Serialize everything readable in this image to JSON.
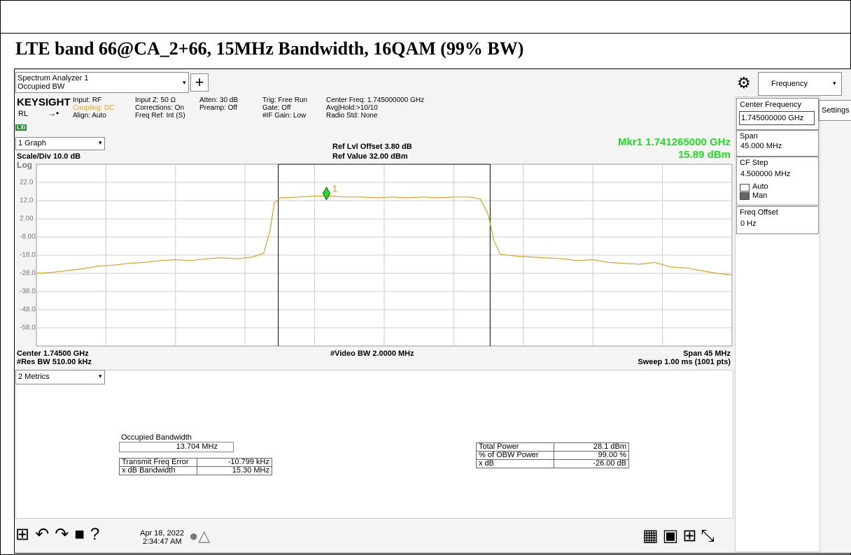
{
  "header": {
    "title": "LTE band 66@CA_2+66, 15MHz Bandwidth, 16QAM (99% BW)"
  },
  "analyzer": {
    "tab_title": "Spectrum Analyzer 1",
    "tab_subtitle": "Occupied BW",
    "brand": "KEYSIGHT",
    "rl": "RL",
    "lxi": "LXI",
    "info": [
      [
        "Input: RF",
        "Coupling: DC",
        "Align: Auto"
      ],
      [
        "Input Z: 50 Ω",
        "Corrections: On",
        "Freq Ref: Int (S)"
      ],
      [
        "Atten: 30 dB",
        "Preamp: Off"
      ],
      [
        "Trig: Free Run",
        "Gate: Off",
        "#IF Gain: Low"
      ],
      [
        "Center Freq: 1.745000000 GHz",
        "Avg|Hold:>10/10",
        "Radio Std: None"
      ]
    ]
  },
  "graph": {
    "selector": "1 Graph",
    "scale": "Scale/Div 10.0 dB",
    "log": "Log",
    "ref_offset": "Ref Lvl Offset 3.80 dB",
    "ref_value": "Ref Value 32.00 dBm",
    "marker_freq": "Mkr1  1.741265000 GHz",
    "marker_amp": "15.89 dBm",
    "center": "Center 1.74500 GHz",
    "res_bw": "#Res BW 510.00 kHz",
    "video_bw": "#Video BW 2.0000 MHz",
    "span": "Span 45 MHz",
    "sweep": "Sweep 1.00 ms (1001 pts)"
  },
  "chart_data": {
    "type": "line",
    "color": "#e0a020",
    "xlim": [
      1.7225,
      1.7675
    ],
    "ylim": [
      -68,
      32
    ],
    "yticks": [
      {
        "value": 22,
        "label": "22.0"
      },
      {
        "value": 12,
        "label": "12.0"
      },
      {
        "value": 2,
        "label": "2.00"
      },
      {
        "value": -8,
        "label": "-8.00"
      },
      {
        "value": -18,
        "label": "-18.0"
      },
      {
        "value": -28,
        "label": "-28.0"
      },
      {
        "value": -38,
        "label": "-38.0"
      },
      {
        "value": -48,
        "label": "-48.0"
      },
      {
        "value": -58,
        "label": "-58.0"
      }
    ],
    "x": [
      1.7225,
      1.7235,
      1.7245,
      1.7255,
      1.7265,
      1.7275,
      1.7285,
      1.7295,
      1.7305,
      1.7315,
      1.7325,
      1.7335,
      1.7345,
      1.7355,
      1.7365,
      1.7372,
      1.7376,
      1.7379,
      1.7383,
      1.7395,
      1.7405,
      1.7415,
      1.7425,
      1.7435,
      1.7445,
      1.7455,
      1.7465,
      1.7475,
      1.7485,
      1.7495,
      1.7505,
      1.7512,
      1.7517,
      1.7521,
      1.7525,
      1.7535,
      1.7545,
      1.7555,
      1.7565,
      1.7575,
      1.7585,
      1.7595,
      1.7605,
      1.7615,
      1.7625,
      1.7635,
      1.7645,
      1.7655,
      1.7665,
      1.7675
    ],
    "values": [
      -28,
      -27.5,
      -26.5,
      -25.5,
      -24,
      -23.5,
      -22.5,
      -22,
      -21,
      -20.5,
      -21,
      -20,
      -19.5,
      -20,
      -19,
      -17,
      -5,
      11,
      13.5,
      14,
      14.5,
      14.5,
      14,
      14,
      13.5,
      14,
      13.5,
      14,
      13.5,
      14,
      14,
      13,
      5,
      -10,
      -17.5,
      -18.5,
      -19,
      -19.5,
      -20,
      -21,
      -20.5,
      -22,
      -22.5,
      -23,
      -22,
      -24.5,
      -25,
      -26.5,
      -28,
      -29
    ],
    "obw_lines": [
      1.738148,
      1.751852
    ],
    "marker": {
      "x": 1.741265,
      "y": 15.89,
      "label": "1"
    }
  },
  "metrics": {
    "selector": "2 Metrics",
    "obw_label": "Occupied Bandwidth",
    "obw_value": "13.704 MHz",
    "left_rows": [
      [
        "Transmit Freq Error",
        "-10.799 kHz"
      ],
      [
        "x dB Bandwidth",
        "15.30 MHz"
      ]
    ],
    "right_rows": [
      [
        "Total Power",
        "28.1 dBm"
      ],
      [
        "% of OBW Power",
        "99.00 %"
      ],
      [
        "x dB",
        "-26.00 dB"
      ]
    ]
  },
  "panel": {
    "tab": "Frequency",
    "settings": "Settings",
    "center_label": "Center Frequency",
    "center_value": "1.745000000 GHz",
    "span_label": "Span",
    "span_value": "45.000 MHz",
    "cf_label": "CF Step",
    "cf_value": "4.500000 MHz",
    "auto": "Auto",
    "man": "Man",
    "offset_label": "Freq Offset",
    "offset_value": "0 Hz"
  },
  "taskbar": {
    "date": "Apr 18, 2022",
    "time": "2:34:47 AM"
  }
}
